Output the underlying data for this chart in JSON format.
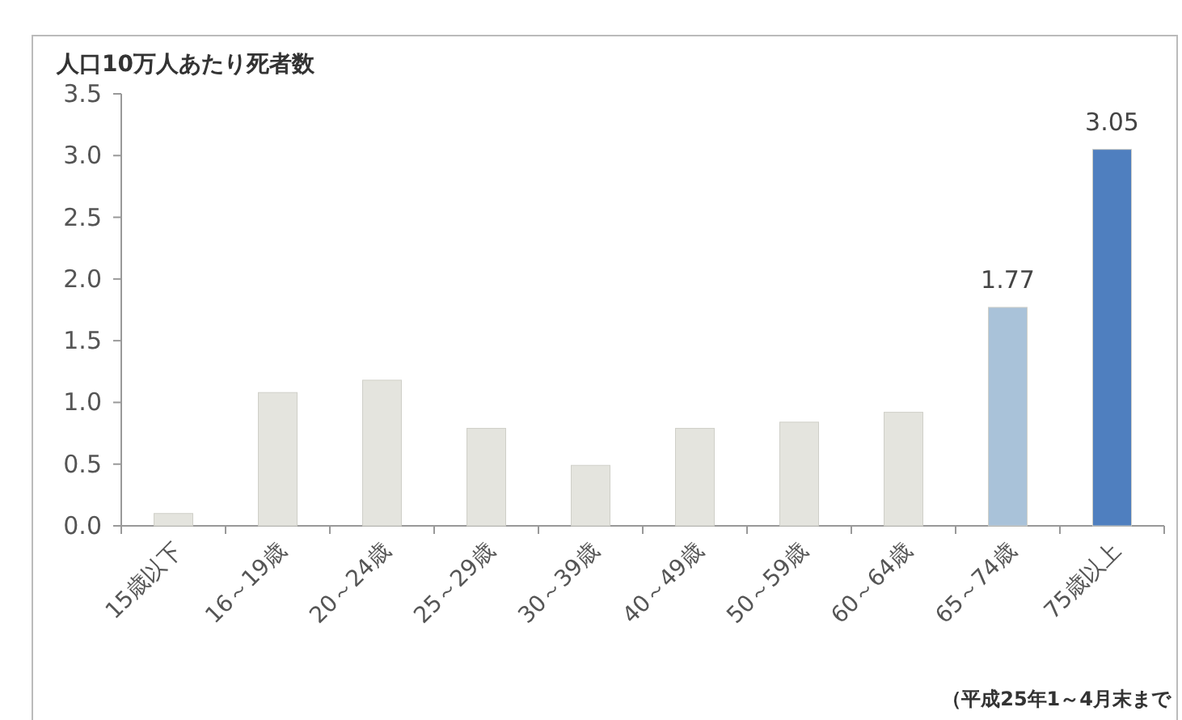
{
  "chart_data": {
    "type": "bar",
    "ylabel": "人口10万人あたり死者数",
    "categories": [
      "15歳以下",
      "16～19歳",
      "20～24歳",
      "25～29歳",
      "30～39歳",
      "40～49歳",
      "50～59歳",
      "60～64歳",
      "65～74歳",
      "75歳以上"
    ],
    "values": [
      0.1,
      1.08,
      1.18,
      0.79,
      0.49,
      0.79,
      0.84,
      0.92,
      1.77,
      3.05
    ],
    "colors": [
      "#e4e4de",
      "#e4e4de",
      "#e4e4de",
      "#e4e4de",
      "#e4e4de",
      "#e4e4de",
      "#e4e4de",
      "#e4e4de",
      "#a9c2d9",
      "#4f7fbf"
    ],
    "value_labels": [
      null,
      null,
      null,
      null,
      null,
      null,
      null,
      null,
      "1.77",
      "3.05"
    ],
    "ylim": [
      0,
      3.5
    ],
    "yticks": [
      "0.0",
      "0.5",
      "1.0",
      "1.5",
      "2.0",
      "2.5",
      "3.0",
      "3.5"
    ],
    "grid": false,
    "annotations": [
      "（平成25年1～4月末まで"
    ]
  }
}
